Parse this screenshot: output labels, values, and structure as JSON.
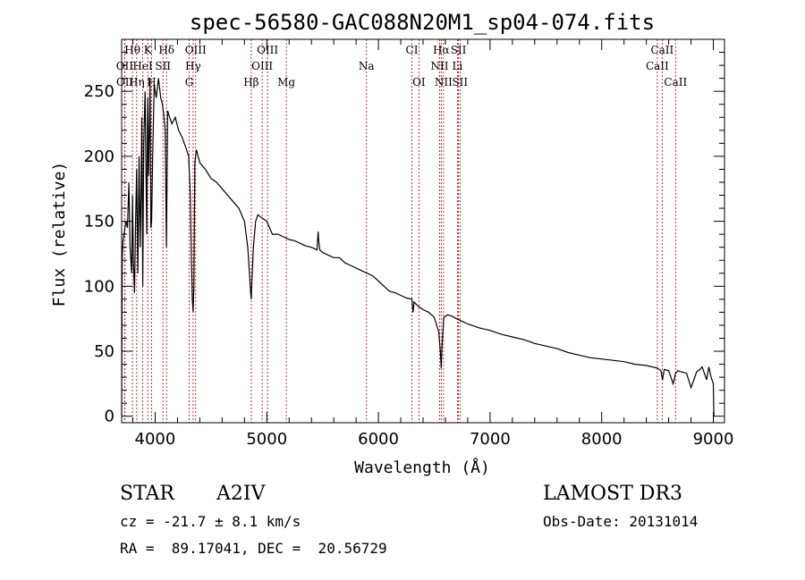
{
  "chart_data": {
    "type": "line",
    "title": "spec-56580-GAC088N20M1_sp04-074.fits",
    "xlabel": "Wavelength (Å)",
    "ylabel": "Flux (relative)",
    "xlim": [
      3700,
      9100
    ],
    "ylim": [
      -5,
      290
    ],
    "xticks": [
      4000,
      5000,
      6000,
      7000,
      8000,
      9000
    ],
    "yticks": [
      0,
      50,
      100,
      150,
      200,
      250
    ],
    "series": [
      {
        "name": "flux",
        "color": "#000000",
        "x": [
          3700,
          3705,
          3712,
          3722,
          3730,
          3740,
          3752,
          3765,
          3775,
          3790,
          3798,
          3805,
          3815,
          3825,
          3835,
          3845,
          3856,
          3866,
          3875,
          3880,
          3889,
          3898,
          3910,
          3925,
          3933,
          3942,
          3955,
          3962,
          3968,
          3978,
          3992,
          4010,
          4030,
          4050,
          4065,
          4080,
          4090,
          4101,
          4112,
          4130,
          4150,
          4180,
          4210,
          4240,
          4270,
          4300,
          4315,
          4325,
          4333,
          4340,
          4347,
          4355,
          4370,
          4400,
          4450,
          4500,
          4550,
          4600,
          4650,
          4700,
          4750,
          4800,
          4830,
          4845,
          4855,
          4861,
          4867,
          4880,
          4900,
          4920,
          4950,
          5000,
          5050,
          5100,
          5150,
          5200,
          5250,
          5300,
          5350,
          5400,
          5450,
          5460,
          5465,
          5475,
          5500,
          5550,
          5600,
          5650,
          5700,
          5750,
          5800,
          5850,
          5900,
          5950,
          6000,
          6050,
          6100,
          6150,
          6200,
          6250,
          6300,
          6310,
          6320,
          6350,
          6400,
          6450,
          6500,
          6540,
          6555,
          6563,
          6571,
          6585,
          6620,
          6660,
          6700,
          6750,
          6800,
          6900,
          7000,
          7100,
          7200,
          7300,
          7400,
          7500,
          7600,
          7700,
          7800,
          7900,
          8000,
          8100,
          8200,
          8300,
          8400,
          8500,
          8530,
          8545,
          8560,
          8600,
          8640,
          8662,
          8680,
          8720,
          8760,
          8800,
          8850,
          8880,
          8900,
          8920,
          8940,
          8960,
          8980,
          9000,
          9005
        ],
        "y": [
          0,
          120,
          135,
          140,
          145,
          150,
          145,
          180,
          130,
          110,
          170,
          120,
          95,
          150,
          190,
          110,
          200,
          130,
          175,
          230,
          100,
          210,
          250,
          140,
          245,
          185,
          260,
          145,
          150,
          200,
          255,
          245,
          260,
          245,
          240,
          230,
          220,
          130,
          235,
          230,
          225,
          230,
          220,
          215,
          208,
          200,
          170,
          120,
          90,
          80,
          100,
          195,
          205,
          195,
          190,
          183,
          180,
          175,
          170,
          165,
          160,
          150,
          130,
          110,
          95,
          90,
          105,
          130,
          150,
          155,
          153,
          150,
          140,
          140,
          138,
          136,
          135,
          133,
          131,
          130,
          128,
          142,
          135,
          128,
          126,
          124,
          122,
          122,
          118,
          116,
          114,
          112,
          110,
          108,
          104,
          100,
          96,
          95,
          93,
          91,
          90,
          80,
          88,
          85,
          82,
          80,
          76,
          65,
          50,
          37,
          55,
          76,
          78,
          77,
          75,
          73,
          71,
          68,
          66,
          63,
          61,
          59,
          56,
          54,
          52,
          49,
          47,
          45,
          44,
          43,
          42,
          40,
          39,
          37,
          35,
          28,
          36,
          35,
          25,
          33,
          35,
          34,
          33,
          22,
          34,
          36,
          38,
          33,
          28,
          38,
          30,
          25,
          0
        ]
      }
    ],
    "lines_top": [
      {
        "label": "Hθ",
        "x": 3797
      },
      {
        "label": "K",
        "x": 3934
      },
      {
        "label": "Hδ",
        "x": 4102
      },
      {
        "label": "OIII",
        "x": 4363
      },
      {
        "label": "OIII",
        "x": 5007
      },
      {
        "label": "CI",
        "x": 6300
      },
      {
        "label": "Hα",
        "x": 6563
      },
      {
        "label": "SII",
        "x": 6717
      },
      {
        "label": "CaII",
        "x": 8542
      }
    ],
    "lines_mid": [
      {
        "label": "OII",
        "x": 3727
      },
      {
        "label": "HeI",
        "x": 3889
      },
      {
        "label": "SII",
        "x": 4070
      },
      {
        "label": "Hγ",
        "x": 4340
      },
      {
        "label": "OIII",
        "x": 4959
      },
      {
        "label": "Na",
        "x": 5893
      },
      {
        "label": "NII",
        "x": 6548
      },
      {
        "label": "Li",
        "x": 6708
      },
      {
        "label": "CaII",
        "x": 8498
      }
    ],
    "lines_low": [
      {
        "label": "OII",
        "x": 3729
      },
      {
        "label": "Hη",
        "x": 3835
      },
      {
        "label": "H",
        "x": 3968
      },
      {
        "label": "G",
        "x": 4305
      },
      {
        "label": "Hβ",
        "x": 4861
      },
      {
        "label": "Mg",
        "x": 5175
      },
      {
        "label": "OI",
        "x": 6363
      },
      {
        "label": "NII",
        "x": 6583
      },
      {
        "label": "SII",
        "x": 6731
      },
      {
        "label": "CaII",
        "x": 8662
      }
    ]
  },
  "info": {
    "object_class": "STAR",
    "subclass": "A2IV",
    "survey": "LAMOST DR3",
    "cz": "cz = -21.7 ± 8.1 km/s",
    "obs_date": "Obs-Date: 20131014",
    "coords": "RA =  89.17041, DEC =  20.56729"
  },
  "colors": {
    "line_marker": "#b22222",
    "axis": "#000000"
  }
}
